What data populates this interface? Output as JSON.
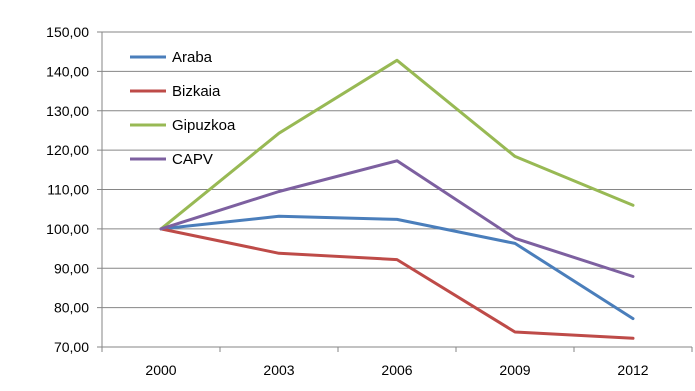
{
  "chart_data": {
    "type": "line",
    "title": "",
    "xlabel": "",
    "ylabel": "",
    "x": [
      "2000",
      "2003",
      "2006",
      "2009",
      "2012"
    ],
    "ylim": [
      70,
      150
    ],
    "yticks": [
      "70,00",
      "80,00",
      "90,00",
      "100,00",
      "110,00",
      "120,00",
      "130,00",
      "140,00",
      "150,00"
    ],
    "grid": true,
    "legend_position": "top-left (inside plot)",
    "series": [
      {
        "name": "Araba",
        "color": "#4a7ebb",
        "values": [
          100,
          103.2,
          102.4,
          96.3,
          77.2
        ]
      },
      {
        "name": "Bizkaia",
        "color": "#be4b48",
        "values": [
          100,
          93.8,
          92.2,
          73.8,
          72.2
        ]
      },
      {
        "name": "Gipuzkoa",
        "color": "#98b954",
        "values": [
          100,
          124.3,
          142.8,
          118.4,
          106.0
        ]
      },
      {
        "name": "CAPV",
        "color": "#7d60a0",
        "values": [
          100,
          109.5,
          117.3,
          97.6,
          87.9
        ]
      }
    ]
  }
}
